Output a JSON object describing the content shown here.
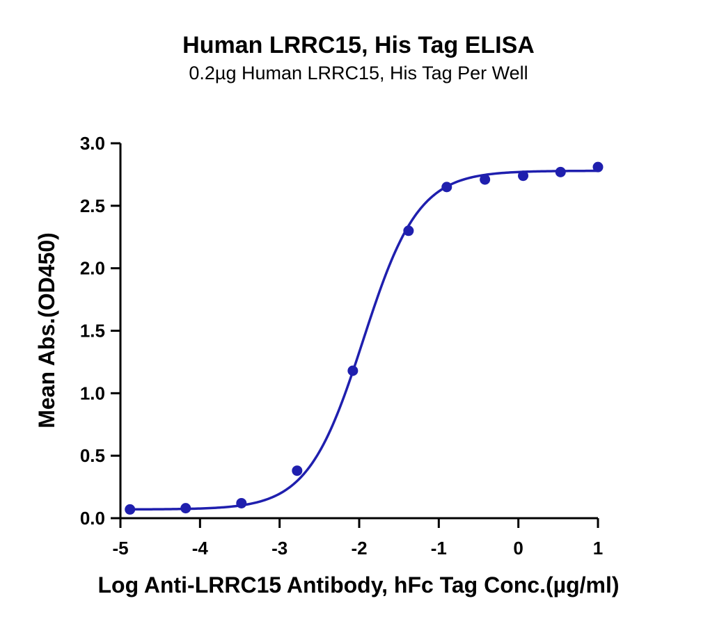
{
  "chart_data": {
    "type": "scatter",
    "title": "Human LRRC15, His Tag ELISA",
    "subtitle": "0.2µg Human LRRC15, His Tag Per Well",
    "xlabel": "Log Anti-LRRC15 Antibody, hFc Tag Conc.(µg/ml)",
    "ylabel": "Mean Abs.(OD450)",
    "xlim": [
      -5,
      1
    ],
    "ylim": [
      0,
      3.0
    ],
    "x_ticks": [
      "-5",
      "-4",
      "-3",
      "-2",
      "-1",
      "0",
      "1"
    ],
    "y_ticks": [
      "0.0",
      "0.5",
      "1.0",
      "1.5",
      "2.0",
      "2.5",
      "3.0"
    ],
    "grid": false,
    "color": "#1f1fae",
    "series": [
      {
        "points": [
          [
            -4.88,
            0.07
          ],
          [
            -4.18,
            0.08
          ],
          [
            -3.48,
            0.12
          ],
          [
            -2.78,
            0.38
          ],
          [
            -2.08,
            1.18
          ],
          [
            -1.38,
            2.3
          ],
          [
            -0.9,
            2.65
          ],
          [
            -0.42,
            2.71
          ],
          [
            0.06,
            2.74
          ],
          [
            0.53,
            2.77
          ],
          [
            1.0,
            2.81
          ]
        ],
        "fit_curve": {
          "model": "4PL",
          "bottom": 0.07,
          "top": 2.78,
          "log_ec50": -1.95,
          "hill_slope": 1.25
        }
      }
    ]
  }
}
